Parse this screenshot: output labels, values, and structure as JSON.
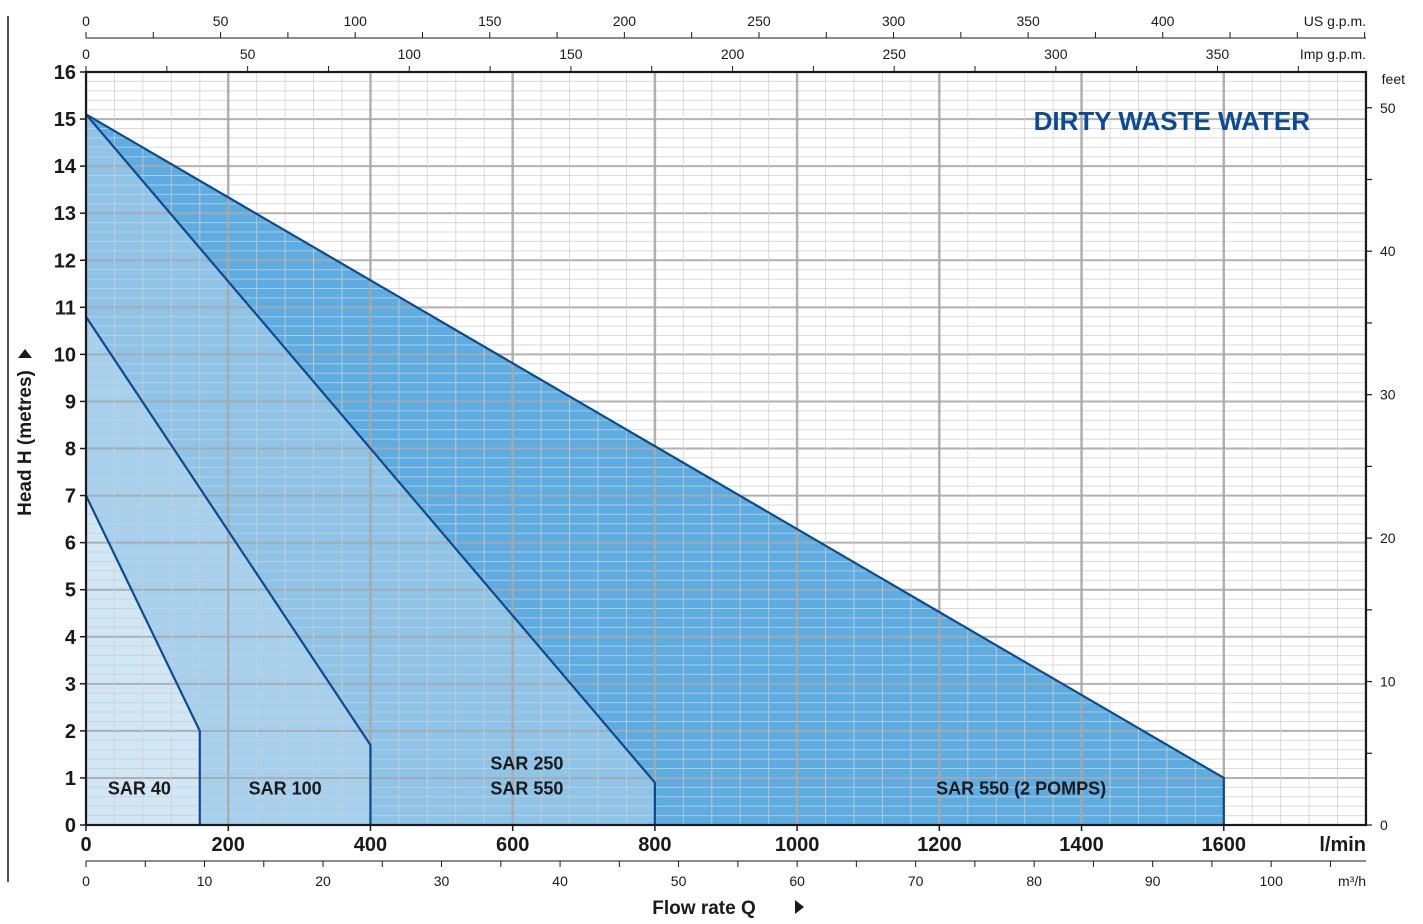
{
  "chart_data": {
    "type": "area",
    "title": "DIRTY WASTE WATER",
    "xlabel": "Flow rate Q",
    "ylabel": "Head H (metres)",
    "x_unit": "l/min",
    "xlim": [
      0,
      1800
    ],
    "ylim": [
      0,
      16
    ],
    "x_ticks": [
      0,
      200,
      400,
      600,
      800,
      1000,
      1200,
      1400,
      1600
    ],
    "y_ticks": [
      0,
      1,
      2,
      3,
      4,
      5,
      6,
      7,
      8,
      9,
      10,
      11,
      12,
      13,
      14,
      15,
      16
    ],
    "grid": true,
    "series": [
      {
        "name": "SAR 550 (2 POMPS)",
        "color": "#5dade2",
        "points": [
          [
            0,
            15.1
          ],
          [
            1600,
            1.0
          ],
          [
            1600,
            0
          ]
        ]
      },
      {
        "name": "SAR 250 SAR 550",
        "color": "#8ec4e8",
        "points": [
          [
            0,
            15.1
          ],
          [
            800,
            0.9
          ],
          [
            800,
            0
          ]
        ]
      },
      {
        "name": "SAR 100",
        "color": "#a6d1ee",
        "points": [
          [
            0,
            10.8
          ],
          [
            400,
            1.7
          ],
          [
            400,
            0
          ]
        ]
      },
      {
        "name": "SAR 40",
        "color": "#d2e7f6",
        "points": [
          [
            0,
            7.0
          ],
          [
            160,
            2.0
          ],
          [
            160,
            0
          ]
        ]
      }
    ],
    "zone_labels": [
      {
        "lines": [
          "SAR 40"
        ],
        "x": 75,
        "y": 0.8
      },
      {
        "lines": [
          "SAR 100"
        ],
        "x": 280,
        "y": 0.8
      },
      {
        "lines": [
          "SAR 250",
          "SAR 550"
        ],
        "x": 620,
        "y": 0.8
      },
      {
        "lines": [
          "SAR 550 (2 POMPS)"
        ],
        "x": 1315,
        "y": 0.8
      }
    ],
    "secondary_axes": {
      "us_gpm": {
        "label": "US g.p.m.",
        "ticks": [
          0,
          50,
          100,
          150,
          200,
          250,
          300,
          350,
          400
        ],
        "lpm_per_unit": 3.78541
      },
      "imp_gpm": {
        "label": "Imp g.p.m.",
        "ticks": [
          0,
          50,
          100,
          150,
          200,
          250,
          300,
          350
        ],
        "lpm_per_unit": 4.54609
      },
      "feet": {
        "label": "feet",
        "ticks": [
          0,
          10,
          20,
          30,
          40,
          50
        ],
        "m_per_unit": 0.3048
      },
      "m3h": {
        "label": "m³/h",
        "ticks": [
          0,
          10,
          20,
          30,
          40,
          50,
          60,
          70,
          80,
          90,
          100
        ],
        "lpm_per_unit": 16.6667
      }
    }
  }
}
